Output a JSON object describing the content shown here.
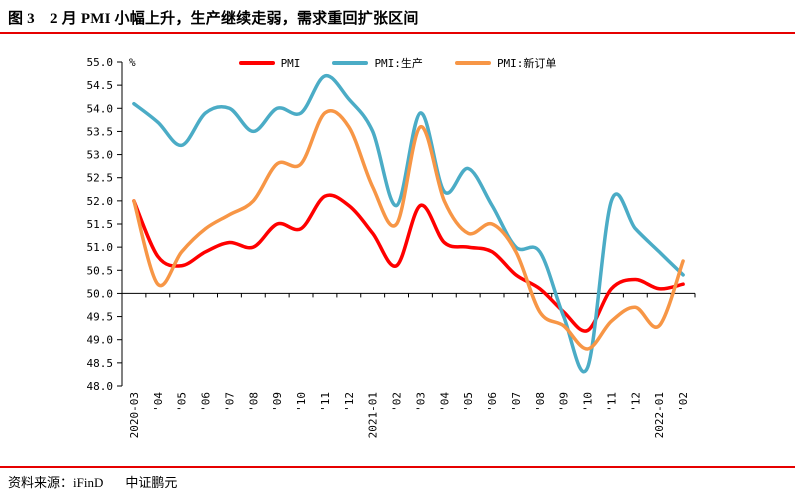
{
  "title": "图 3　2 月 PMI 小幅上升，生产继续走弱，需求重回扩张区间",
  "footer": {
    "source_label": "资料来源：iFinD",
    "company": "中证鹏元"
  },
  "colors": {
    "accent_red": "#e60000",
    "axis": "#000000",
    "background": "#ffffff"
  },
  "chart_data": {
    "type": "line",
    "smooth": true,
    "grid": false,
    "legend_position": "top",
    "unit_label": "%",
    "ylim": [
      48.0,
      55.0
    ],
    "ytick_step": 0.5,
    "baseline": 50.0,
    "yticks": [
      "55.0",
      "54.5",
      "54.0",
      "53.5",
      "53.0",
      "52.5",
      "52.0",
      "51.5",
      "51.0",
      "50.5",
      "50.0",
      "49.5",
      "49.0",
      "48.5",
      "48.0"
    ],
    "categories": [
      "2020-03",
      "'04",
      "'05",
      "'06",
      "'07",
      "'08",
      "'09",
      "'10",
      "'11",
      "'12",
      "2021-01",
      "'02",
      "'03",
      "'04",
      "'05",
      "'06",
      "'07",
      "'08",
      "'09",
      "'10",
      "'11",
      "'12",
      "2022-01",
      "'02"
    ],
    "series": [
      {
        "name": "PMI",
        "color": "#ff0000",
        "values": [
          52.0,
          50.8,
          50.6,
          50.9,
          51.1,
          51.0,
          51.5,
          51.4,
          52.1,
          51.9,
          51.3,
          50.6,
          51.9,
          51.1,
          51.0,
          50.9,
          50.4,
          50.1,
          49.6,
          49.2,
          50.1,
          50.3,
          50.1,
          50.2
        ]
      },
      {
        "name": "PMI:生产",
        "color": "#4bacc6",
        "values": [
          54.1,
          53.7,
          53.2,
          53.9,
          54.0,
          53.5,
          54.0,
          53.9,
          54.7,
          54.2,
          53.5,
          51.9,
          53.9,
          52.2,
          52.7,
          51.9,
          51.0,
          50.9,
          49.5,
          48.4,
          52.0,
          51.4,
          50.9,
          50.4
        ]
      },
      {
        "name": "PMI:新订单",
        "color": "#f79646",
        "values": [
          52.0,
          50.2,
          50.9,
          51.4,
          51.7,
          52.0,
          52.8,
          52.8,
          53.9,
          53.6,
          52.3,
          51.5,
          53.6,
          52.0,
          51.3,
          51.5,
          50.9,
          49.6,
          49.3,
          48.8,
          49.4,
          49.7,
          49.3,
          50.7
        ]
      }
    ]
  }
}
